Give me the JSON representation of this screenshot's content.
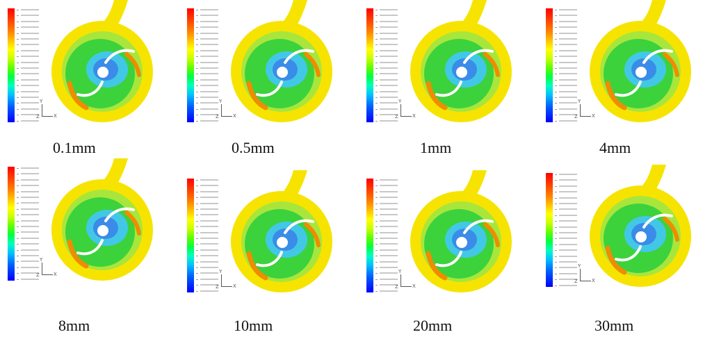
{
  "panels": [
    {
      "caption": "0.1mm"
    },
    {
      "caption": "0.5mm"
    },
    {
      "caption": "1mm"
    },
    {
      "caption": "4mm"
    },
    {
      "caption": "8mm"
    },
    {
      "caption": "10mm"
    },
    {
      "caption": "20mm"
    },
    {
      "caption": "30mm"
    }
  ],
  "axis_labels": {
    "x": "X",
    "z": "Z"
  },
  "colors": {
    "volute": "#f6e400",
    "green": "#3cd23c",
    "light_green": "#a8e63c",
    "blue_region": "#3a8ce8",
    "cyan_region": "#42c8e6",
    "orange_spot": "#f08c00",
    "blade": "#ffffff"
  }
}
